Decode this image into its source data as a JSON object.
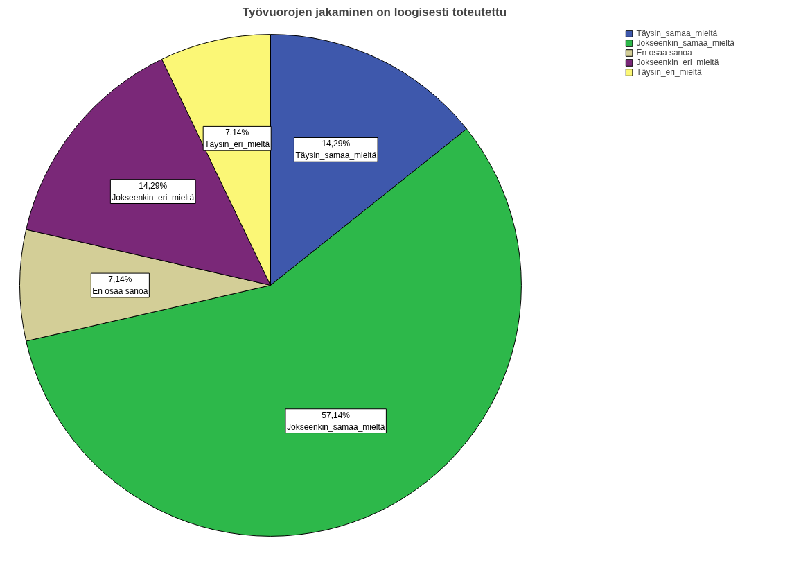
{
  "chart_data": {
    "type": "pie",
    "title": "Työvuorojen jakaminen on loogisesti toteutettu",
    "categories": [
      "Täysin_samaa_mieltä",
      "Jokseenkin_samaa_mieltä",
      "En osaa sanoa",
      "Jokseenkin_eri_mieltä",
      "Täysin_eri_mieltä"
    ],
    "values": [
      14.29,
      57.14,
      7.14,
      14.29,
      7.14
    ],
    "value_labels": [
      "14,29%",
      "57,14%",
      "7,14%",
      "14,29%",
      "7,14%"
    ],
    "colors": [
      "#3e58ac",
      "#2db84a",
      "#d3ce97",
      "#7a2878",
      "#fbf776"
    ],
    "legend": "top right"
  }
}
